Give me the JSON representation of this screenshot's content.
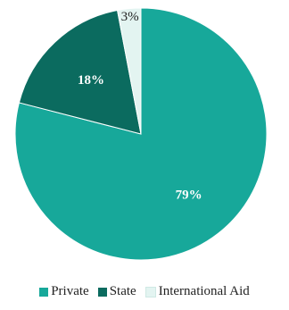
{
  "chart_data": {
    "type": "pie",
    "start": "12 o'clock, clockwise",
    "categories": [
      "Private",
      "State",
      "International Aid"
    ],
    "values": [
      79,
      18,
      3
    ],
    "labels": [
      "79%",
      "18%",
      "3%"
    ],
    "colors": [
      "#17a89a",
      "#0b6b5f",
      "#e3f4f1"
    ],
    "label_colors": [
      "#ffffff",
      "#ffffff",
      "#222222"
    ],
    "legend_position": "bottom"
  }
}
